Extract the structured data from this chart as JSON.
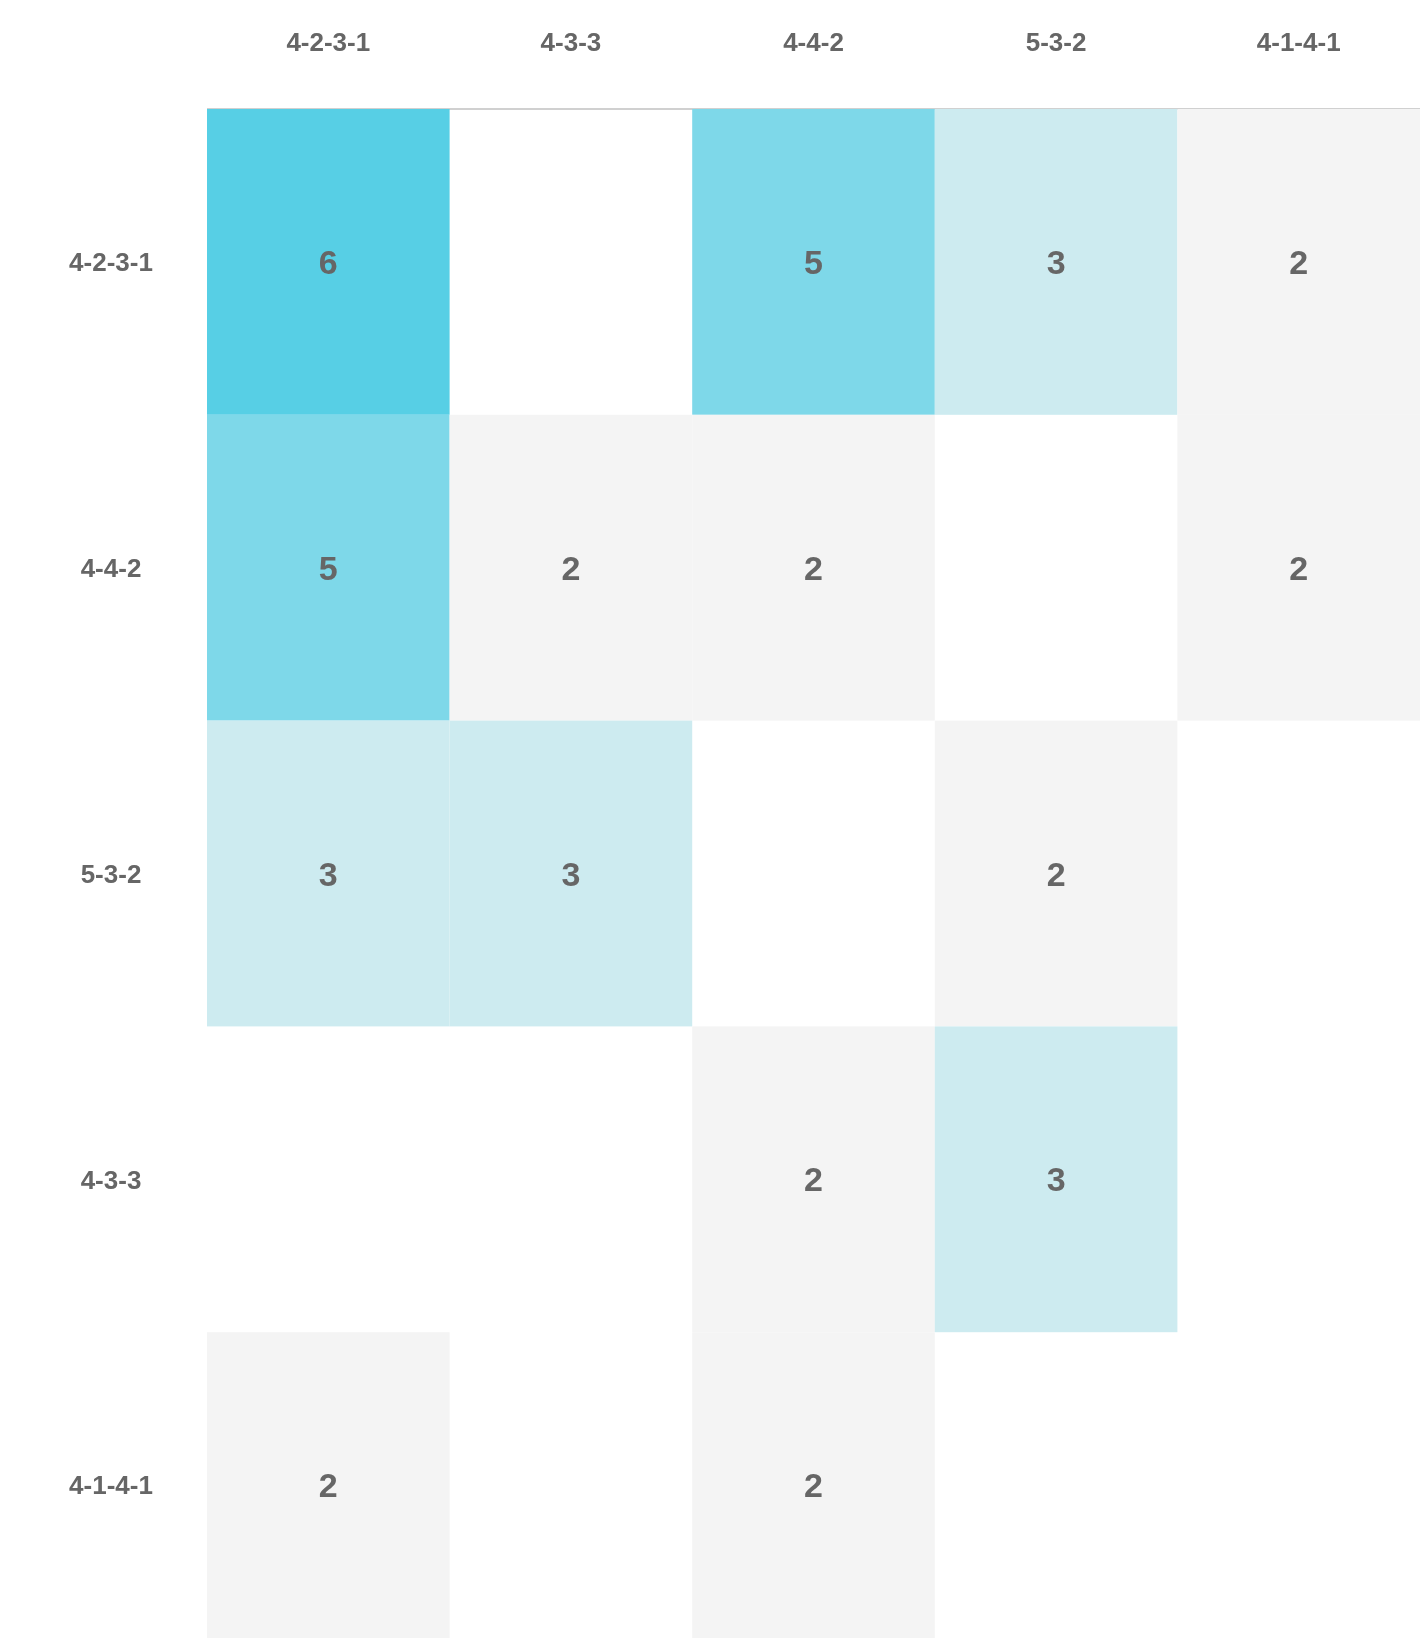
{
  "chart_data": {
    "type": "heatmap",
    "categories": [
      "4-2-3-1",
      "4-3-3",
      "4-4-2",
      "5-3-2",
      "4-1-4-1"
    ],
    "y_categories": [
      "4-2-3-1",
      "4-4-2",
      "5-3-2",
      "4-3-3",
      "4-1-4-1"
    ],
    "cells": [
      [
        6,
        null,
        5,
        3,
        2
      ],
      [
        5,
        2,
        2,
        null,
        2
      ],
      [
        3,
        3,
        null,
        2,
        null
      ],
      [
        null,
        null,
        2,
        3,
        null
      ],
      [
        2,
        null,
        2,
        null,
        null
      ]
    ],
    "colors": [
      "#f4f4f4",
      "#57cfe5"
    ],
    "data_labels": true
  }
}
